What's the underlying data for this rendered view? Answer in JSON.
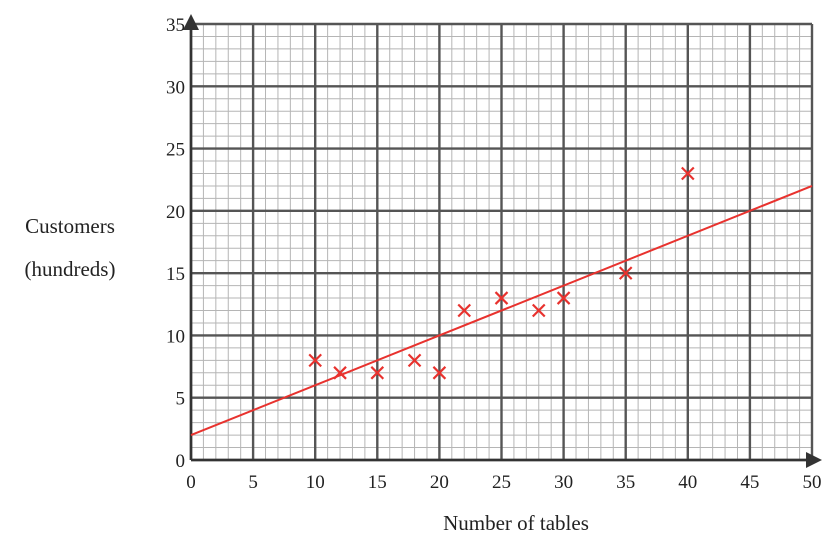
{
  "chart_data": {
    "type": "scatter",
    "title": "",
    "xlabel": "Number of tables",
    "ylabel_lines": [
      "Customers",
      "(hundreds)"
    ],
    "xlim": [
      0,
      50
    ],
    "ylim": [
      0,
      35
    ],
    "x_ticks": [
      0,
      5,
      10,
      15,
      20,
      25,
      30,
      35,
      40,
      45,
      50
    ],
    "y_ticks": [
      0,
      5,
      10,
      15,
      20,
      25,
      30,
      35
    ],
    "grid": true,
    "minor_grid_step": 1,
    "major_grid_step": 5,
    "series": [
      {
        "marker": "x",
        "color": "#e8322e",
        "points": [
          {
            "x": 10,
            "y": 8
          },
          {
            "x": 12,
            "y": 7
          },
          {
            "x": 15,
            "y": 7
          },
          {
            "x": 18,
            "y": 8
          },
          {
            "x": 20,
            "y": 7
          },
          {
            "x": 22,
            "y": 12
          },
          {
            "x": 25,
            "y": 13
          },
          {
            "x": 28,
            "y": 12
          },
          {
            "x": 30,
            "y": 13
          },
          {
            "x": 35,
            "y": 15
          },
          {
            "x": 40,
            "y": 23
          }
        ]
      }
    ],
    "line_of_best_fit": {
      "color": "#e8322e",
      "from": {
        "x": 0,
        "y": 2
      },
      "to": {
        "x": 50,
        "y": 22
      }
    }
  },
  "colors": {
    "major_grid": "#555555",
    "minor_grid": "#b5b5b5",
    "axis": "#333333",
    "marker": "#e8322e"
  }
}
